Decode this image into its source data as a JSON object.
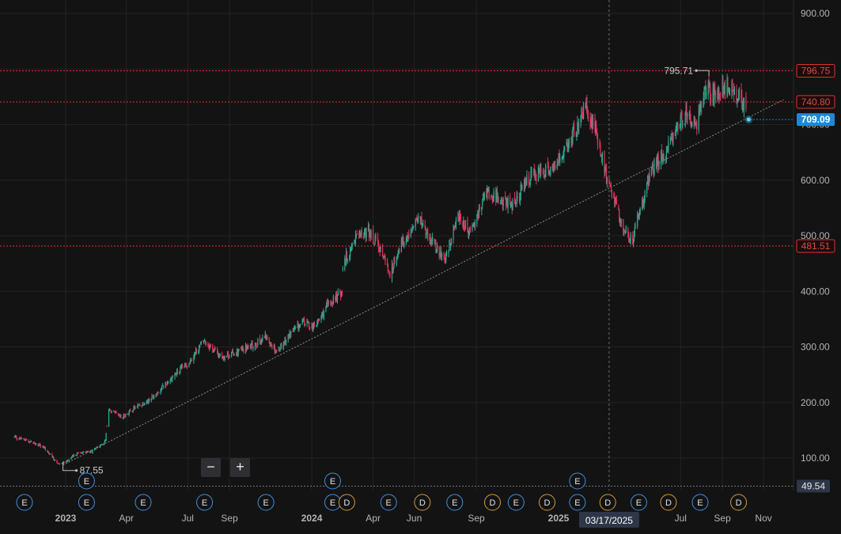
{
  "chart_data": {
    "type": "candlestick",
    "title": "",
    "xlabel": "",
    "ylabel": "",
    "y_axis_side": "right",
    "ylim": [
      49.54,
      900
    ],
    "y_ticks": [
      "900.00",
      "800.00",
      "700.00",
      "600.00",
      "500.00",
      "400.00",
      "300.00",
      "200.00",
      "100.00"
    ],
    "x_ticks": [
      {
        "label": "2023",
        "date": "2023-01",
        "bold": true
      },
      {
        "label": "Apr",
        "date": "2023-04"
      },
      {
        "label": "Jul",
        "date": "2023-07"
      },
      {
        "label": "Sep",
        "date": "2023-09"
      },
      {
        "label": "2024",
        "date": "2024-01",
        "bold": true
      },
      {
        "label": "Apr",
        "date": "2024-04"
      },
      {
        "label": "Jun",
        "date": "2024-06"
      },
      {
        "label": "Sep",
        "date": "2024-09"
      },
      {
        "label": "2025",
        "date": "2025-01",
        "bold": true
      },
      {
        "label": "Jul",
        "date": "2025-07"
      },
      {
        "label": "Sep",
        "date": "2025-09"
      },
      {
        "label": "Nov",
        "date": "2025-11"
      }
    ],
    "grid": true,
    "colors": {
      "up": "#2cab94",
      "down": "#e0335a",
      "background": "#131313",
      "grid": "#232323",
      "level": "#e0302a",
      "current": "#1e88d6",
      "earnings": "#3f8fe0",
      "dividend": "#d29a3a",
      "trendline": "#8a8a8a",
      "crosshair": "#6a6a6a"
    },
    "price_trend": [
      [
        "2022-10-15",
        138
      ],
      [
        "2022-11-10",
        130
      ],
      [
        "2022-12-01",
        118
      ],
      [
        "2022-12-20",
        90
      ],
      [
        "2023-01-01",
        94
      ],
      [
        "2023-01-20",
        110
      ],
      [
        "2023-02-10",
        112
      ],
      [
        "2023-03-01",
        130
      ],
      [
        "2023-03-05",
        188
      ],
      [
        "2023-03-25",
        172
      ],
      [
        "2023-04-15",
        192
      ],
      [
        "2023-05-05",
        205
      ],
      [
        "2023-05-20",
        222
      ],
      [
        "2023-06-10",
        248
      ],
      [
        "2023-07-01",
        270
      ],
      [
        "2023-07-25",
        312
      ],
      [
        "2023-08-20",
        282
      ],
      [
        "2023-09-15",
        292
      ],
      [
        "2023-10-05",
        302
      ],
      [
        "2023-10-25",
        318
      ],
      [
        "2023-11-10",
        292
      ],
      [
        "2023-12-01",
        325
      ],
      [
        "2023-12-20",
        345
      ],
      [
        "2024-01-05",
        335
      ],
      [
        "2024-01-25",
        375
      ],
      [
        "2024-02-15",
        400
      ],
      [
        "2024-02-16",
        450
      ],
      [
        "2024-03-05",
        490
      ],
      [
        "2024-03-25",
        510
      ],
      [
        "2024-04-10",
        480
      ],
      [
        "2024-04-25",
        430
      ],
      [
        "2024-05-10",
        480
      ],
      [
        "2024-05-25",
        505
      ],
      [
        "2024-06-10",
        532
      ],
      [
        "2024-06-25",
        495
      ],
      [
        "2024-07-15",
        455
      ],
      [
        "2024-08-05",
        535
      ],
      [
        "2024-08-25",
        505
      ],
      [
        "2024-09-15",
        580
      ],
      [
        "2024-10-05",
        570
      ],
      [
        "2024-10-25",
        555
      ],
      [
        "2024-11-15",
        600
      ],
      [
        "2024-12-05",
        612
      ],
      [
        "2024-12-25",
        625
      ],
      [
        "2025-01-15",
        660
      ],
      [
        "2025-02-10",
        732
      ],
      [
        "2025-02-25",
        690
      ],
      [
        "2025-03-15",
        595
      ],
      [
        "2025-04-05",
        520
      ],
      [
        "2025-04-20",
        490
      ],
      [
        "2025-05-05",
        560
      ],
      [
        "2025-05-20",
        620
      ],
      [
        "2025-06-10",
        650
      ],
      [
        "2025-06-25",
        700
      ],
      [
        "2025-07-10",
        720
      ],
      [
        "2025-07-25",
        705
      ],
      [
        "2025-08-08",
        765
      ],
      [
        "2025-08-20",
        750
      ],
      [
        "2025-09-05",
        770
      ],
      [
        "2025-09-20",
        760
      ],
      [
        "2025-10-01",
        740
      ],
      [
        "2025-10-10",
        709
      ]
    ],
    "price_gaps": [
      "2023-03-04",
      "2024-02-15"
    ],
    "annotations": {
      "high": {
        "label": "795.71",
        "date": "2025-08-12",
        "value": 795.71
      },
      "low": {
        "label": "87.55",
        "date": "2022-12-28",
        "value": 87.55
      }
    },
    "levels": [
      {
        "label": "796.75",
        "value": 796.75,
        "style": "red"
      },
      {
        "label": "740.80",
        "value": 740.8,
        "style": "red"
      },
      {
        "label": "481.51",
        "value": 481.51,
        "style": "red"
      }
    ],
    "current_price": {
      "label": "709.09",
      "value": 709.09
    },
    "bottom_value": {
      "label": "49.54",
      "value": 49.54
    },
    "trendline": {
      "from": [
        "2022-12-28",
        87.55
      ],
      "to": [
        "2025-12-01",
        745
      ]
    },
    "crosshair": {
      "date": "2025-03-17",
      "label": "03/17/2025"
    },
    "events": [
      {
        "type": "E",
        "date": "2022-11-01",
        "row": 1
      },
      {
        "type": "E",
        "date": "2023-02-01",
        "row": 0
      },
      {
        "type": "E",
        "date": "2023-02-01",
        "row": 1
      },
      {
        "type": "E",
        "date": "2023-04-26",
        "row": 1
      },
      {
        "type": "E",
        "date": "2023-07-26",
        "row": 1
      },
      {
        "type": "E",
        "date": "2023-10-25",
        "row": 1
      },
      {
        "type": "E",
        "date": "2024-02-01",
        "row": 0
      },
      {
        "type": "E",
        "date": "2024-02-01",
        "row": 1
      },
      {
        "type": "D",
        "date": "2024-02-22",
        "row": 1
      },
      {
        "type": "E",
        "date": "2024-04-24",
        "row": 1
      },
      {
        "type": "D",
        "date": "2024-06-13",
        "row": 1
      },
      {
        "type": "E",
        "date": "2024-07-31",
        "row": 1
      },
      {
        "type": "D",
        "date": "2024-09-25",
        "row": 1
      },
      {
        "type": "E",
        "date": "2024-10-30",
        "row": 1
      },
      {
        "type": "D",
        "date": "2024-12-15",
        "row": 1
      },
      {
        "type": "E",
        "date": "2025-01-29",
        "row": 0
      },
      {
        "type": "E",
        "date": "2025-01-29",
        "row": 1
      },
      {
        "type": "D",
        "date": "2025-03-15",
        "row": 1
      },
      {
        "type": "E",
        "date": "2025-04-30",
        "row": 1
      },
      {
        "type": "D",
        "date": "2025-06-13",
        "row": 1
      },
      {
        "type": "E",
        "date": "2025-07-30",
        "row": 1
      },
      {
        "type": "D",
        "date": "2025-09-25",
        "row": 1
      }
    ]
  },
  "controls": {
    "zoom_out_label": "−",
    "zoom_in_label": "+"
  }
}
